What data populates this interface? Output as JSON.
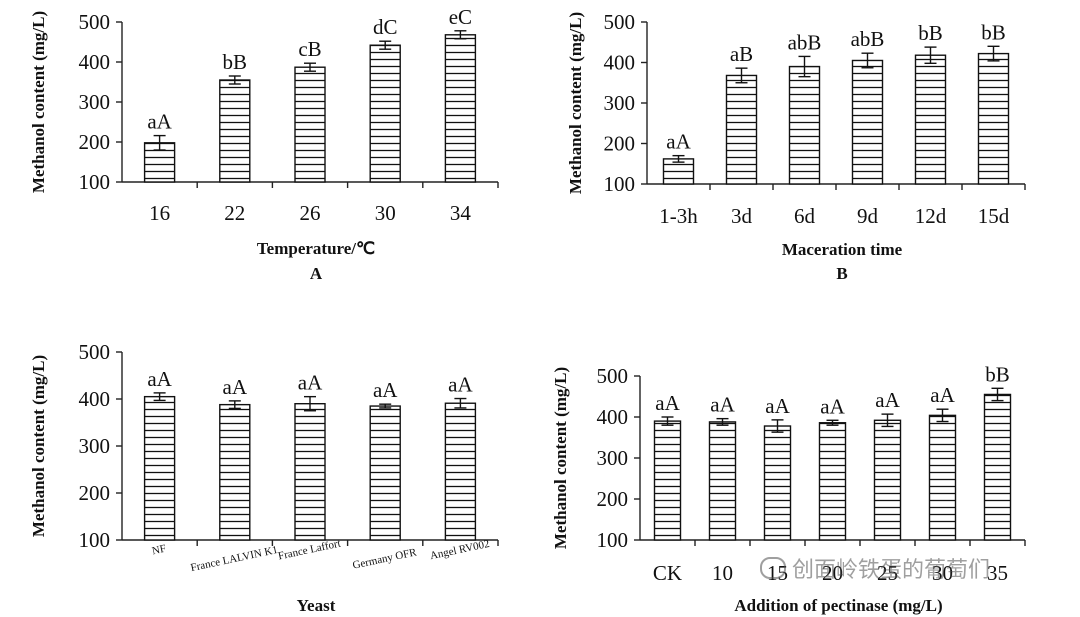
{
  "watermark": "创面岭铁蛋的葡萄们",
  "chart_data": [
    {
      "type": "bar",
      "panel": "A",
      "ylabel": "Methanol content (mg/L)",
      "xlabel": "Temperature/℃",
      "ylim": [
        100,
        500
      ],
      "yticks": [
        100,
        200,
        300,
        400,
        500
      ],
      "categories": [
        "16",
        "22",
        "26",
        "30",
        "34"
      ],
      "values": [
        198,
        355,
        387,
        442,
        468
      ],
      "errors": [
        18,
        10,
        10,
        10,
        10
      ],
      "significance": [
        "aA",
        "bB",
        "cB",
        "dC",
        "eC"
      ]
    },
    {
      "type": "bar",
      "panel": "B",
      "ylabel": "Methanol content (mg/L)",
      "xlabel": "Maceration time",
      "ylim": [
        100,
        500
      ],
      "yticks": [
        100,
        200,
        300,
        400,
        500
      ],
      "categories": [
        "1-3h",
        "3d",
        "6d",
        "9d",
        "12d",
        "15d"
      ],
      "values": [
        162,
        368,
        390,
        405,
        418,
        422
      ],
      "errors": [
        8,
        18,
        25,
        18,
        20,
        18
      ],
      "significance": [
        "aA",
        "aB",
        "abB",
        "abB",
        "bB",
        "bB"
      ]
    },
    {
      "type": "bar",
      "panel": "",
      "ylabel": "Methanol content (mg/L)",
      "xlabel": "Yeast",
      "ylim": [
        100,
        500
      ],
      "yticks": [
        100,
        200,
        300,
        400,
        500
      ],
      "categories": [
        "NF",
        "France LALVIN K1",
        "France Laffort",
        "Germany OFR",
        "Angel RV002"
      ],
      "values": [
        405,
        388,
        390,
        385,
        391
      ],
      "errors": [
        8,
        8,
        15,
        4,
        10
      ],
      "significance": [
        "aA",
        "aA",
        "aA",
        "aA",
        "aA"
      ]
    },
    {
      "type": "bar",
      "panel": "",
      "ylabel": "Methanol content (mg/L)",
      "xlabel": "Addition of pectinase (mg/L)",
      "ylim": [
        100,
        500
      ],
      "yticks": [
        100,
        200,
        300,
        400,
        500
      ],
      "categories": [
        "CK",
        "10",
        "15",
        "20",
        "25",
        "30",
        "35"
      ],
      "values": [
        390,
        388,
        378,
        386,
        392,
        404,
        455
      ],
      "errors": [
        10,
        8,
        15,
        6,
        15,
        15,
        15
      ],
      "significance": [
        "aA",
        "aA",
        "aA",
        "aA",
        "aA",
        "aA",
        "bB"
      ]
    }
  ]
}
